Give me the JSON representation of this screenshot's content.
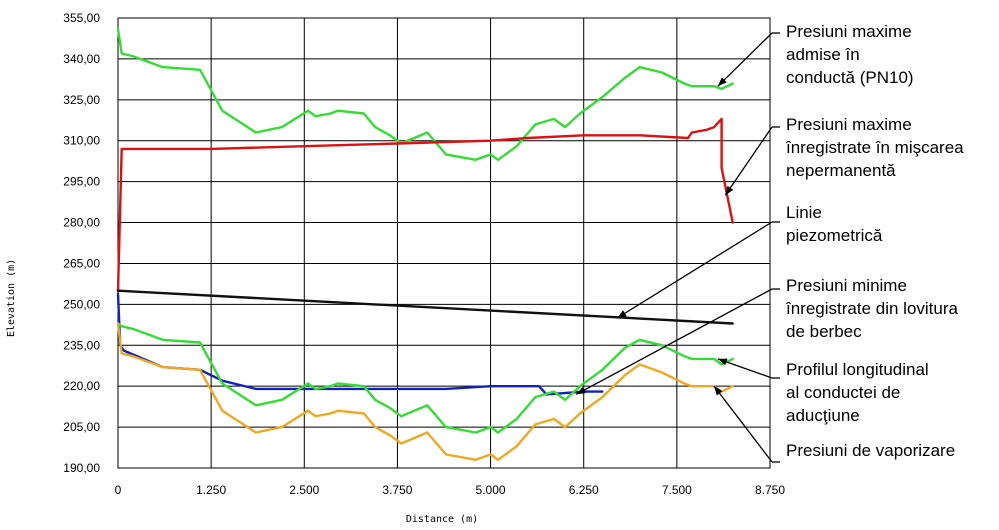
{
  "chart_data": {
    "type": "line",
    "xlabel": "Distance (m)",
    "ylabel": "Elevation (m)",
    "xlim": [
      0,
      8750
    ],
    "ylim": [
      190,
      355
    ],
    "grid": true,
    "x_ticks": [
      0,
      1250,
      2500,
      3750,
      5000,
      6250,
      7500,
      8750
    ],
    "x_tick_labels": [
      "0",
      "1.250",
      "2.500",
      "3.750",
      "5.000",
      "6.250",
      "7.500",
      "8.750"
    ],
    "y_ticks": [
      190,
      205,
      220,
      235,
      250,
      265,
      280,
      295,
      310,
      325,
      340,
      355
    ],
    "y_tick_labels": [
      "190,00",
      "205,00",
      "220,00",
      "235,00",
      "250,00",
      "265,00",
      "280,00",
      "295,00",
      "310,00",
      "325,00",
      "340,00",
      "355,00"
    ],
    "series": [
      {
        "name": "Presiuni maxime admise în conductă (PN10)",
        "color": "#33dd33",
        "points": [
          [
            0,
            351
          ],
          [
            50,
            342
          ],
          [
            200,
            341
          ],
          [
            600,
            337
          ],
          [
            1100,
            336
          ],
          [
            1400,
            321
          ],
          [
            1850,
            313
          ],
          [
            2200,
            315
          ],
          [
            2550,
            321
          ],
          [
            2650,
            319
          ],
          [
            2850,
            320
          ],
          [
            2950,
            321
          ],
          [
            3300,
            320
          ],
          [
            3450,
            315
          ],
          [
            3650,
            312
          ],
          [
            3800,
            309
          ],
          [
            4150,
            313
          ],
          [
            4400,
            305
          ],
          [
            4800,
            303
          ],
          [
            5000,
            305
          ],
          [
            5100,
            303
          ],
          [
            5350,
            308
          ],
          [
            5600,
            316
          ],
          [
            5850,
            318
          ],
          [
            6000,
            315
          ],
          [
            6200,
            320
          ],
          [
            6500,
            326
          ],
          [
            6800,
            333
          ],
          [
            7000,
            337
          ],
          [
            7300,
            335
          ],
          [
            7600,
            331
          ],
          [
            7700,
            330
          ],
          [
            8000,
            330
          ],
          [
            8100,
            329
          ],
          [
            8250,
            331
          ]
        ]
      },
      {
        "name": "Presiuni maxime înregistrate în mişcarea nepermanentă",
        "color": "#dd1111",
        "points": [
          [
            0,
            255
          ],
          [
            50,
            307
          ],
          [
            1250,
            307
          ],
          [
            2500,
            308
          ],
          [
            3750,
            309
          ],
          [
            5000,
            310
          ],
          [
            5500,
            311
          ],
          [
            6250,
            312
          ],
          [
            7000,
            312
          ],
          [
            7650,
            311
          ],
          [
            7700,
            313
          ],
          [
            7900,
            314
          ],
          [
            8000,
            315
          ],
          [
            8100,
            318
          ],
          [
            8100,
            300
          ],
          [
            8250,
            280
          ]
        ]
      },
      {
        "name": "Linie piezometrică",
        "color": "#111111",
        "points": [
          [
            0,
            255
          ],
          [
            8250,
            243
          ]
        ]
      },
      {
        "name": "Presiuni minime înregistrate din lovitura de berbec",
        "color": "#1122bb",
        "points": [
          [
            0,
            254
          ],
          [
            30,
            235
          ],
          [
            80,
            233
          ],
          [
            600,
            227
          ],
          [
            1100,
            226
          ],
          [
            1400,
            222
          ],
          [
            1850,
            219
          ],
          [
            2500,
            219
          ],
          [
            3750,
            219
          ],
          [
            4400,
            219
          ],
          [
            5000,
            220
          ],
          [
            5650,
            220
          ],
          [
            5750,
            217
          ],
          [
            6250,
            218
          ],
          [
            6500,
            218
          ]
        ]
      },
      {
        "name": "Profilul longitudinal al conductei de aducţiune",
        "color": "#33dd33",
        "points": [
          [
            0,
            243
          ],
          [
            50,
            242
          ],
          [
            200,
            241
          ],
          [
            600,
            237
          ],
          [
            1100,
            236
          ],
          [
            1400,
            221
          ],
          [
            1850,
            213
          ],
          [
            2200,
            215
          ],
          [
            2550,
            221
          ],
          [
            2650,
            219
          ],
          [
            2850,
            220
          ],
          [
            2950,
            221
          ],
          [
            3300,
            220
          ],
          [
            3450,
            215
          ],
          [
            3650,
            212
          ],
          [
            3800,
            209
          ],
          [
            4150,
            213
          ],
          [
            4400,
            205
          ],
          [
            4800,
            203
          ],
          [
            5000,
            205
          ],
          [
            5100,
            203
          ],
          [
            5350,
            208
          ],
          [
            5600,
            216
          ],
          [
            5850,
            218
          ],
          [
            6000,
            215
          ],
          [
            6200,
            220
          ],
          [
            6500,
            226
          ],
          [
            6800,
            234
          ],
          [
            7000,
            237
          ],
          [
            7300,
            235
          ],
          [
            7600,
            231
          ],
          [
            7700,
            230
          ],
          [
            8000,
            230
          ],
          [
            8100,
            228
          ],
          [
            8250,
            230
          ]
        ]
      },
      {
        "name": "Presiuni de vaporizare",
        "color": "#f0a820",
        "points": [
          [
            0,
            243
          ],
          [
            50,
            232
          ],
          [
            200,
            231
          ],
          [
            600,
            227
          ],
          [
            1100,
            226
          ],
          [
            1400,
            211
          ],
          [
            1850,
            203
          ],
          [
            2200,
            205
          ],
          [
            2550,
            211
          ],
          [
            2650,
            209
          ],
          [
            2850,
            210
          ],
          [
            2950,
            211
          ],
          [
            3300,
            210
          ],
          [
            3450,
            205
          ],
          [
            3650,
            202
          ],
          [
            3800,
            199
          ],
          [
            4150,
            203
          ],
          [
            4400,
            195
          ],
          [
            4800,
            193
          ],
          [
            5000,
            195
          ],
          [
            5100,
            193
          ],
          [
            5350,
            198
          ],
          [
            5600,
            206
          ],
          [
            5850,
            208
          ],
          [
            6000,
            205
          ],
          [
            6200,
            210
          ],
          [
            6500,
            216
          ],
          [
            6800,
            224
          ],
          [
            7000,
            228
          ],
          [
            7300,
            225
          ],
          [
            7600,
            221
          ],
          [
            7700,
            220
          ],
          [
            8000,
            220
          ],
          [
            8100,
            218
          ],
          [
            8250,
            220
          ]
        ]
      }
    ],
    "annotations": [
      {
        "lines": [
          "Presiuni maxime",
          "admise în",
          "conductă (PN10)"
        ],
        "series": 0,
        "at": [
          8050,
          330
        ]
      },
      {
        "lines": [
          "Presiuni maxime",
          "înregistrate în mişcarea",
          "nepermanentă"
        ],
        "series": 1,
        "at": [
          8150,
          290
        ]
      },
      {
        "lines": [
          "Linie",
          "piezometrică"
        ],
        "series": 2,
        "at": [
          6700,
          245
        ]
      },
      {
        "lines": [
          "Presiuni minime",
          "înregistrate din lovitura",
          "de berbec"
        ],
        "series": 3,
        "at": [
          6150,
          217
        ]
      },
      {
        "lines": [
          "Profilul longitudinal",
          "al conductei de",
          "aducţiune"
        ],
        "series": 4,
        "at": [
          8050,
          230
        ]
      },
      {
        "lines": [
          "Presiuni de vaporizare"
        ],
        "series": 5,
        "at": [
          8000,
          220
        ]
      }
    ]
  }
}
